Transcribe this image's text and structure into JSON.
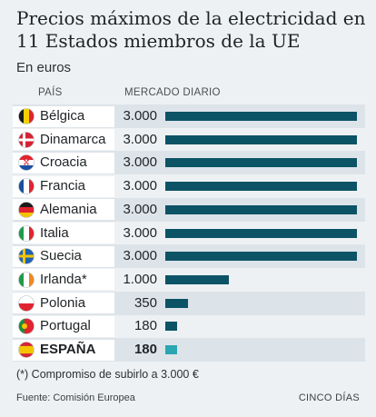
{
  "title": "Precios máximos de la electricidad en 11 Estados miembros de la UE",
  "subtitle": "En euros",
  "columns": {
    "country": "PAÍS",
    "market": "MERCADO DIARIO"
  },
  "chart_data": {
    "type": "bar",
    "orientation": "horizontal",
    "title": "Precios máximos de la electricidad en 11 Estados miembros de la UE",
    "subtitle": "En euros",
    "categories": [
      "Bélgica",
      "Dinamarca",
      "Croacia",
      "Francia",
      "Alemania",
      "Italia",
      "Suecia",
      "Irlanda*",
      "Polonia",
      "Portugal",
      "ESPAÑA"
    ],
    "values": [
      3000,
      3000,
      3000,
      3000,
      3000,
      3000,
      3000,
      1000,
      350,
      180,
      180
    ],
    "value_labels": [
      "3.000",
      "3.000",
      "3.000",
      "3.000",
      "3.000",
      "3.000",
      "3.000",
      "1.000",
      "350",
      "180",
      "180"
    ],
    "highlight": "ESPAÑA",
    "xlim": [
      0,
      3000
    ],
    "colors": {
      "bar": "#0c5366",
      "highlight": "#2aa6b3",
      "row_shade": "#dde4e9"
    },
    "flags": [
      "belgium",
      "denmark",
      "croatia",
      "france",
      "germany",
      "italy",
      "sweden",
      "ireland",
      "poland",
      "portugal",
      "spain"
    ]
  },
  "footnote": "(*) Compromiso de subirlo a 3.000 €",
  "source": "Fuente: Comisión Europea",
  "credit": "CINCO DÍAS"
}
